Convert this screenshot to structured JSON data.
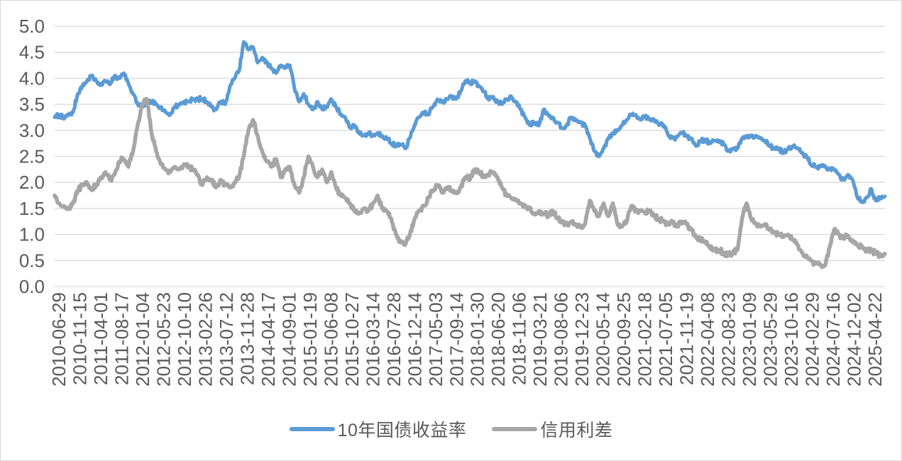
{
  "chart_data": {
    "type": "line",
    "title": "",
    "xlabel": "",
    "ylabel": "",
    "ylim": [
      0.0,
      5.0
    ],
    "y_tick_step": 0.5,
    "grid": "horizontal",
    "legend_position": "bottom",
    "y_tick_labels": [
      "5.0",
      "4.5",
      "4.0",
      "3.5",
      "3.0",
      "2.5",
      "2.0",
      "1.5",
      "1.0",
      "0.5",
      "0.0"
    ],
    "x_tick_labels": [
      "2010-06-29",
      "2010-11-15",
      "2011-04-01",
      "2011-08-17",
      "2012-01-04",
      "2012-05-23",
      "2012-10-10",
      "2013-02-26",
      "2013-07-12",
      "2013-11-28",
      "2014-04-17",
      "2014-09-01",
      "2015-01-19",
      "2015-06-08",
      "2015-10-27",
      "2016-03-14",
      "2016-07-28",
      "2016-12-14",
      "2017-05-03",
      "2017-09-14",
      "2018-01-30",
      "2018-06-20",
      "2018-11-06",
      "2019-03-21",
      "2019-08-06",
      "2019-12-23",
      "2020-05-14",
      "2020-09-25",
      "2021-02-18",
      "2021-07-05",
      "2021-11-19",
      "2022-04-08",
      "2022-08-23",
      "2023-01-09",
      "2023-05-29",
      "2023-10-16",
      "2024-02-29",
      "2024-07-16",
      "2024-12-02",
      "2025-04-22"
    ],
    "series_x_start": "2010-06",
    "series_x_end": "2025-06",
    "series_x_interval": "monthly",
    "series": [
      {
        "name": "10年国债收益率",
        "color": "#5B9BD5",
        "values": [
          3.25,
          3.3,
          3.22,
          3.3,
          3.35,
          3.7,
          3.85,
          3.95,
          4.05,
          3.95,
          3.88,
          3.95,
          3.88,
          4.05,
          4.0,
          4.1,
          3.9,
          3.7,
          3.5,
          3.45,
          3.5,
          3.55,
          3.5,
          3.45,
          3.35,
          3.3,
          3.45,
          3.5,
          3.55,
          3.55,
          3.6,
          3.6,
          3.6,
          3.55,
          3.45,
          3.4,
          3.55,
          3.5,
          3.85,
          4.0,
          4.15,
          4.7,
          4.55,
          4.6,
          4.3,
          4.4,
          4.3,
          4.2,
          4.1,
          4.25,
          4.2,
          4.25,
          3.8,
          3.55,
          3.7,
          3.5,
          3.4,
          3.55,
          3.4,
          3.45,
          3.6,
          3.45,
          3.3,
          3.25,
          3.05,
          3.1,
          2.95,
          2.9,
          2.95,
          2.9,
          2.95,
          2.9,
          2.85,
          2.75,
          2.7,
          2.73,
          2.65,
          2.85,
          3.1,
          3.25,
          3.35,
          3.3,
          3.45,
          3.6,
          3.55,
          3.6,
          3.65,
          3.6,
          3.75,
          3.95,
          3.9,
          3.95,
          3.85,
          3.75,
          3.6,
          3.65,
          3.55,
          3.5,
          3.6,
          3.65,
          3.55,
          3.4,
          3.25,
          3.1,
          3.15,
          3.1,
          3.4,
          3.3,
          3.25,
          3.15,
          3.05,
          3.1,
          3.25,
          3.2,
          3.15,
          3.1,
          2.85,
          2.6,
          2.5,
          2.65,
          2.85,
          2.95,
          3.0,
          3.1,
          3.2,
          3.3,
          3.3,
          3.2,
          3.28,
          3.2,
          3.2,
          3.1,
          3.1,
          2.9,
          2.85,
          2.88,
          2.95,
          2.9,
          2.85,
          2.7,
          2.8,
          2.82,
          2.75,
          2.8,
          2.8,
          2.75,
          2.6,
          2.65,
          2.65,
          2.85,
          2.88,
          2.9,
          2.9,
          2.86,
          2.8,
          2.7,
          2.65,
          2.65,
          2.56,
          2.65,
          2.7,
          2.66,
          2.56,
          2.5,
          2.34,
          2.3,
          2.3,
          2.32,
          2.25,
          2.25,
          2.15,
          2.05,
          2.15,
          2.05,
          1.72,
          1.62,
          1.7,
          1.88,
          1.65,
          1.7,
          1.73
        ]
      },
      {
        "name": "信用利差",
        "color": "#A6A6A6",
        "values": [
          1.75,
          1.6,
          1.55,
          1.5,
          1.6,
          1.85,
          1.95,
          2.0,
          1.85,
          1.95,
          2.1,
          2.2,
          2.05,
          2.15,
          2.4,
          2.45,
          2.3,
          2.6,
          3.1,
          3.5,
          3.6,
          2.95,
          2.6,
          2.35,
          2.25,
          2.2,
          2.3,
          2.25,
          2.35,
          2.3,
          2.25,
          2.15,
          1.95,
          2.1,
          2.05,
          1.9,
          2.05,
          1.95,
          1.9,
          2.0,
          2.1,
          2.5,
          3.0,
          3.2,
          2.9,
          2.6,
          2.4,
          2.3,
          2.45,
          2.1,
          2.25,
          2.3,
          1.95,
          1.8,
          2.1,
          2.5,
          2.3,
          2.1,
          2.25,
          2.0,
          2.2,
          1.9,
          1.75,
          1.7,
          1.6,
          1.45,
          1.4,
          1.5,
          1.45,
          1.6,
          1.75,
          1.5,
          1.45,
          1.3,
          1.0,
          0.85,
          0.8,
          1.0,
          1.3,
          1.45,
          1.55,
          1.7,
          1.85,
          1.95,
          1.8,
          1.9,
          1.85,
          1.8,
          1.9,
          2.1,
          2.05,
          2.25,
          2.2,
          2.1,
          2.15,
          2.2,
          2.1,
          1.9,
          1.75,
          1.7,
          1.65,
          1.6,
          1.55,
          1.5,
          1.4,
          1.45,
          1.4,
          1.35,
          1.45,
          1.3,
          1.25,
          1.2,
          1.25,
          1.2,
          1.15,
          1.2,
          1.65,
          1.45,
          1.35,
          1.6,
          1.35,
          1.6,
          1.2,
          1.15,
          1.25,
          1.55,
          1.45,
          1.45,
          1.4,
          1.45,
          1.35,
          1.3,
          1.25,
          1.2,
          1.25,
          1.15,
          1.25,
          1.2,
          1.1,
          0.95,
          0.9,
          0.85,
          0.75,
          0.72,
          0.7,
          0.65,
          0.6,
          0.65,
          0.7,
          1.3,
          1.6,
          1.3,
          1.2,
          1.15,
          1.2,
          1.1,
          1.05,
          1.0,
          0.95,
          1.0,
          0.9,
          0.8,
          0.65,
          0.6,
          0.5,
          0.45,
          0.42,
          0.4,
          0.75,
          1.1,
          1.0,
          0.92,
          0.98,
          0.85,
          0.8,
          0.78,
          0.68,
          0.72,
          0.63,
          0.6,
          0.63
        ]
      }
    ]
  },
  "style_colors": {
    "axis_label": "#595959",
    "gridline": "#d9d9d9",
    "frame_border": "#d9d9d9",
    "background": "#ffffff"
  }
}
